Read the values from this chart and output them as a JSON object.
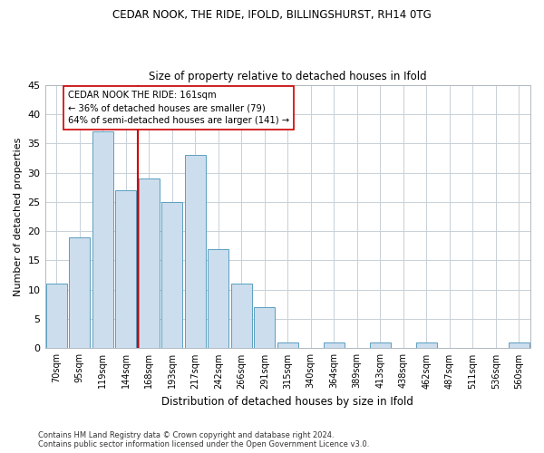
{
  "title1": "CEDAR NOOK, THE RIDE, IFOLD, BILLINGSHURST, RH14 0TG",
  "title2": "Size of property relative to detached houses in Ifold",
  "xlabel": "Distribution of detached houses by size in Ifold",
  "ylabel": "Number of detached properties",
  "categories": [
    "70sqm",
    "95sqm",
    "119sqm",
    "144sqm",
    "168sqm",
    "193sqm",
    "217sqm",
    "242sqm",
    "266sqm",
    "291sqm",
    "315sqm",
    "340sqm",
    "364sqm",
    "389sqm",
    "413sqm",
    "438sqm",
    "462sqm",
    "487sqm",
    "511sqm",
    "536sqm",
    "560sqm"
  ],
  "values": [
    11,
    19,
    37,
    27,
    29,
    25,
    33,
    17,
    11,
    7,
    1,
    0,
    1,
    0,
    1,
    0,
    1,
    0,
    0,
    0,
    1
  ],
  "bar_color": "#ccdded",
  "bar_edge_color": "#5a9fc0",
  "vline_x_index": 4,
  "vline_color": "#cc0000",
  "annotation_text": "CEDAR NOOK THE RIDE: 161sqm\n← 36% of detached houses are smaller (79)\n64% of semi-detached houses are larger (141) →",
  "annotation_box_color": "#ffffff",
  "annotation_box_edge": "#cc0000",
  "ylim": [
    0,
    45
  ],
  "yticks": [
    0,
    5,
    10,
    15,
    20,
    25,
    30,
    35,
    40,
    45
  ],
  "footnote": "Contains HM Land Registry data © Crown copyright and database right 2024.\nContains public sector information licensed under the Open Government Licence v3.0.",
  "bg_color": "#ffffff",
  "plot_bg_color": "#ffffff",
  "grid_color": "#c8d0d8"
}
